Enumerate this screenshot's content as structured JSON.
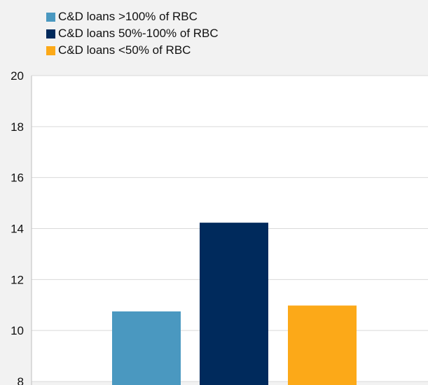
{
  "chart_data": {
    "type": "bar",
    "categories": [
      "C&D loans >100% of RBC",
      "C&D loans 50%-100% of RBC",
      "C&D loans <50% of RBC"
    ],
    "series": [
      {
        "name": "C&D loans >100% of RBC",
        "value": 10.75,
        "color": "#4a98c0"
      },
      {
        "name": "C&D loans 50%-100% of RBC",
        "value": 14.23,
        "color": "#002a5c"
      },
      {
        "name": "C&D loans <50% of RBC",
        "value": 10.98,
        "color": "#fca918"
      }
    ],
    "title": "",
    "xlabel": "",
    "ylabel": "",
    "ylim": [
      8,
      20
    ],
    "yticks": [
      "8",
      "10",
      "12",
      "14",
      "16",
      "18",
      "20"
    ],
    "grid": true,
    "legend_position": "top-left"
  }
}
